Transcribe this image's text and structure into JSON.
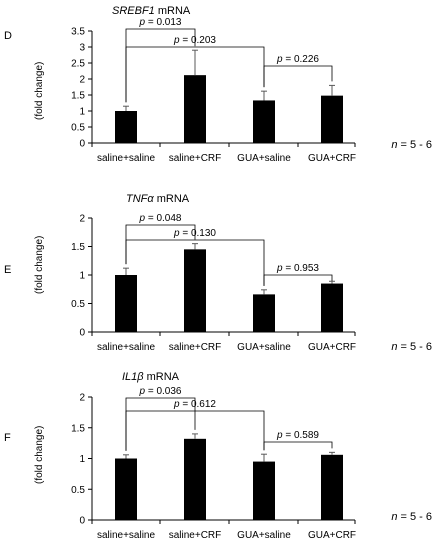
{
  "chart_data": [
    {
      "type": "bar",
      "panel_label": "D",
      "title_italic": "SREBF1",
      "title_rest": " mRNA",
      "ylabel": "(fold change)",
      "categories": [
        "saline+saline",
        "saline+CRF",
        "GUA+saline",
        "GUA+CRF"
      ],
      "values": [
        1.0,
        2.12,
        1.33,
        1.48
      ],
      "errors": [
        0.15,
        0.78,
        0.29,
        0.32
      ],
      "ylim": [
        0,
        3.5
      ],
      "yticks": [
        "0",
        "0.5",
        "1",
        "1.5",
        "2",
        "2.5",
        "3",
        "3.5"
      ],
      "comparisons": [
        {
          "from": 0,
          "to": 1,
          "p": "= 0.013"
        },
        {
          "from": 0,
          "to": 2,
          "p": "= 0.203"
        },
        {
          "from": 2,
          "to": 3,
          "p": "= 0.226"
        }
      ],
      "n_italic": "n",
      "n_rest": " = 5 - 6"
    },
    {
      "type": "bar",
      "panel_label": "E",
      "title_italic": "TNFα",
      "title_rest": " mRNA",
      "ylabel": "(fold change)",
      "categories": [
        "saline+saline",
        "saline+CRF",
        "GUA+saline",
        "GUA+CRF"
      ],
      "values": [
        1.0,
        1.45,
        0.66,
        0.85
      ],
      "errors": [
        0.12,
        0.1,
        0.08,
        0.04
      ],
      "ylim": [
        0,
        2
      ],
      "yticks": [
        "0",
        "0.5",
        "1",
        "1.5",
        "2"
      ],
      "comparisons": [
        {
          "from": 0,
          "to": 1,
          "p": "= 0.048"
        },
        {
          "from": 0,
          "to": 2,
          "p": "= 0.130"
        },
        {
          "from": 2,
          "to": 3,
          "p": "= 0.953"
        }
      ],
      "n_italic": "n",
      "n_rest": " = 5 - 6"
    },
    {
      "type": "bar",
      "panel_label": "F",
      "title_italic": "IL1β",
      "title_rest": " mRNA",
      "ylabel": "(fold change)",
      "categories": [
        "saline+saline",
        "saline+CRF",
        "GUA+saline",
        "GUA+CRF"
      ],
      "values": [
        1.0,
        1.32,
        0.95,
        1.06
      ],
      "errors": [
        0.06,
        0.08,
        0.12,
        0.04
      ],
      "ylim": [
        0,
        2
      ],
      "yticks": [
        "0",
        "0.5",
        "1",
        "1.5",
        "2"
      ],
      "comparisons": [
        {
          "from": 0,
          "to": 1,
          "p": "= 0.036"
        },
        {
          "from": 0,
          "to": 2,
          "p": "= 0.612"
        },
        {
          "from": 2,
          "to": 3,
          "p": "= 0.589"
        }
      ],
      "n_italic": "n",
      "n_rest": " = 5 - 6"
    }
  ]
}
